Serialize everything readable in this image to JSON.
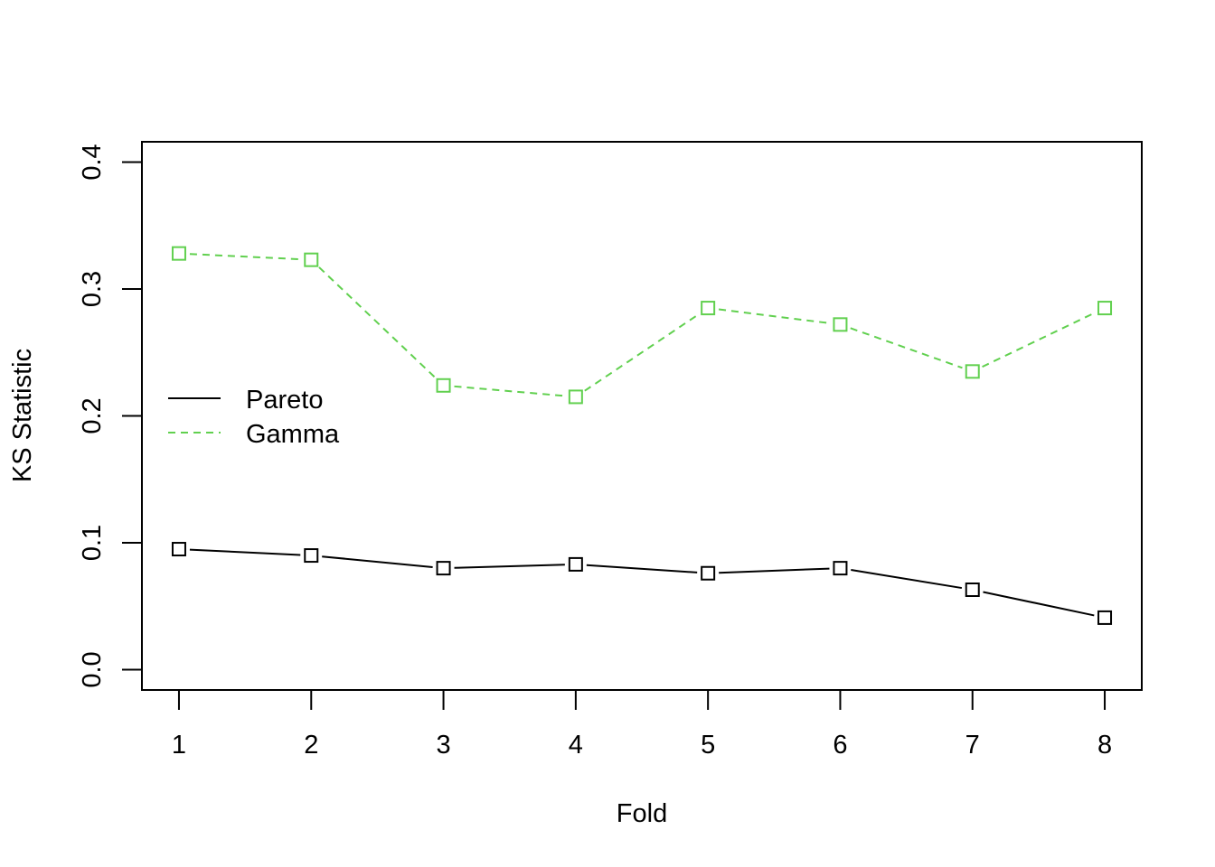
{
  "chart_data": {
    "type": "line",
    "title": "",
    "xlabel": "Fold",
    "ylabel": "KS Statistic",
    "x": [
      1,
      2,
      3,
      4,
      5,
      6,
      7,
      8
    ],
    "xlim": [
      0.72,
      8.28
    ],
    "ylim": [
      -0.016,
      0.416
    ],
    "yticks": [
      "0.0",
      "0.1",
      "0.2",
      "0.3",
      "0.4"
    ],
    "xticks": [
      "1",
      "2",
      "3",
      "4",
      "5",
      "6",
      "7",
      "8"
    ],
    "grid": false,
    "legend_position": "center-left",
    "series": [
      {
        "name": "Pareto",
        "values": [
          0.095,
          0.09,
          0.08,
          0.083,
          0.076,
          0.08,
          0.063,
          0.041
        ],
        "color": "#000000",
        "line_style": "solid",
        "marker": "open-square"
      },
      {
        "name": "Gamma",
        "values": [
          0.328,
          0.323,
          0.224,
          0.215,
          0.285,
          0.272,
          0.235,
          0.285
        ],
        "color": "#61D04F",
        "line_style": "dashed",
        "marker": "open-square"
      }
    ]
  }
}
